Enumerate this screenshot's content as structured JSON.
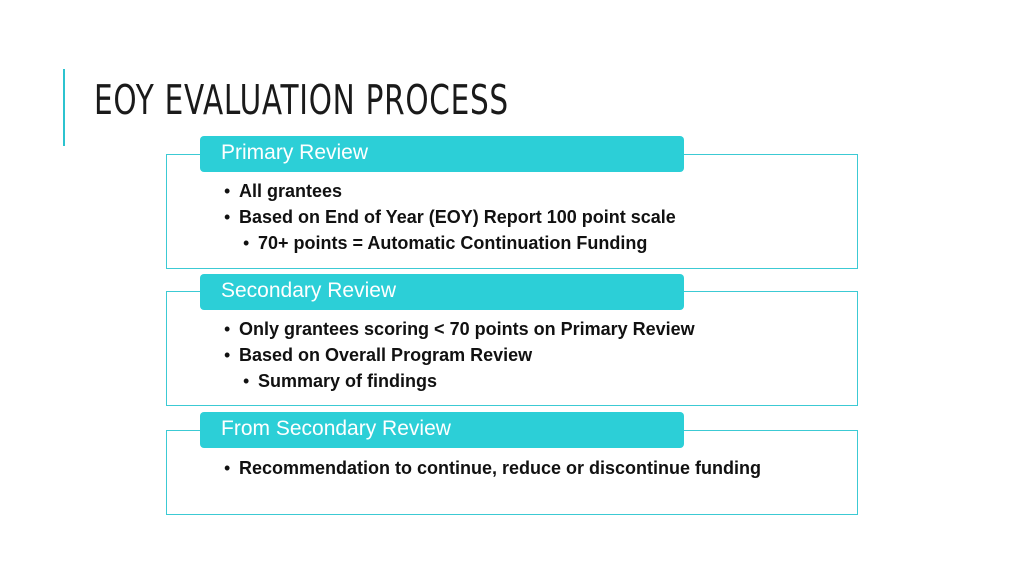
{
  "slide": {
    "title": "EOY EVALUATION PROCESS"
  },
  "sections": [
    {
      "header": "Primary Review",
      "bullets": [
        "All grantees",
        "Based on End of Year (EOY) Report 100 point scale",
        "70+ points = Automatic Continuation Funding"
      ]
    },
    {
      "header": "Secondary Review",
      "bullets": [
        "Only grantees scoring < 70 points on Primary Review",
        "Based on Overall Program Review",
        "Summary of findings"
      ]
    },
    {
      "header": "From Secondary Review",
      "bullets": [
        "Recommendation to continue, reduce or discontinue funding"
      ]
    }
  ],
  "colors": {
    "accent": "#2cc3cf",
    "header_fill": "#2ccfd7",
    "box_border": "#3ccad4",
    "text": "#111111"
  }
}
